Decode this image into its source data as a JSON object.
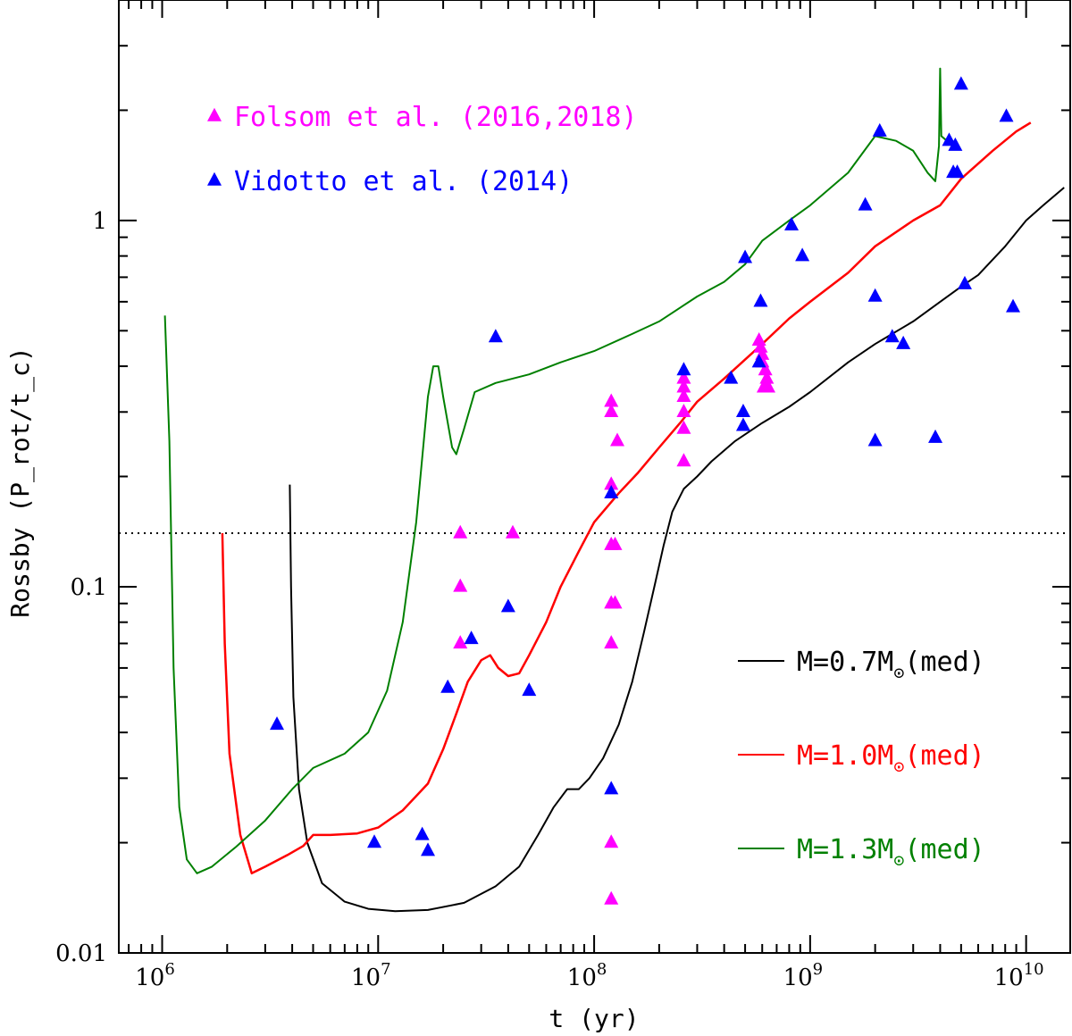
{
  "chart_data": {
    "type": "scatter",
    "xlabel": "t (yr)",
    "ylabel": "Rossby (P_rot/t_c)",
    "xscale": "log",
    "yscale": "log",
    "xlim": [
      630000,
      16000000000
    ],
    "ylim": [
      0.01,
      4.0
    ],
    "x_tick_labels": [
      {
        "value": 1000000,
        "base": "10",
        "exp": "6"
      },
      {
        "value": 10000000,
        "base": "10",
        "exp": "7"
      },
      {
        "value": 100000000,
        "base": "10",
        "exp": "8"
      },
      {
        "value": 1000000000,
        "base": "10",
        "exp": "9"
      },
      {
        "value": 10000000000,
        "base": "10",
        "exp": "10"
      }
    ],
    "y_tick_labels": [
      {
        "value": 0.01,
        "label": "0.01"
      },
      {
        "value": 0.1,
        "label": "0.1"
      },
      {
        "value": 1,
        "label": "1"
      }
    ],
    "threshold_line": {
      "y": 0.14,
      "style": "dotted",
      "color": "#000000"
    },
    "scatter_series": [
      {
        "name": "Folsom et al. (2016,2018)",
        "color": "#ff00ff",
        "marker": "triangle",
        "points": [
          [
            24000000,
            0.14
          ],
          [
            24000000,
            0.1
          ],
          [
            24000000,
            0.07
          ],
          [
            42000000,
            0.14
          ],
          [
            120000000,
            0.32
          ],
          [
            120000000,
            0.3
          ],
          [
            120000000,
            0.19
          ],
          [
            120000000,
            0.13
          ],
          [
            125000000,
            0.13
          ],
          [
            120000000,
            0.09
          ],
          [
            125000000,
            0.09
          ],
          [
            120000000,
            0.07
          ],
          [
            120000000,
            0.02
          ],
          [
            120000000,
            0.014
          ],
          [
            128000000,
            0.25
          ],
          [
            260000000,
            0.37
          ],
          [
            260000000,
            0.35
          ],
          [
            260000000,
            0.33
          ],
          [
            260000000,
            0.3
          ],
          [
            260000000,
            0.27
          ],
          [
            260000000,
            0.22
          ],
          [
            580000000,
            0.47
          ],
          [
            590000000,
            0.45
          ],
          [
            600000000,
            0.43
          ],
          [
            600000000,
            0.41
          ],
          [
            620000000,
            0.39
          ],
          [
            630000000,
            0.37
          ],
          [
            610000000,
            0.35
          ],
          [
            640000000,
            0.35
          ]
        ]
      },
      {
        "name": "Vidotto et al. (2014)",
        "color": "#0000ff",
        "marker": "triangle",
        "points": [
          [
            3400000,
            0.042
          ],
          [
            9600000,
            0.02
          ],
          [
            16000000,
            0.021
          ],
          [
            17000000,
            0.019
          ],
          [
            21000000,
            0.053
          ],
          [
            27000000,
            0.072
          ],
          [
            35000000,
            0.48
          ],
          [
            40000000,
            0.088
          ],
          [
            50000000,
            0.052
          ],
          [
            120000000,
            0.18
          ],
          [
            120000000,
            0.028
          ],
          [
            260000000,
            0.39
          ],
          [
            430000000,
            0.37
          ],
          [
            490000000,
            0.3
          ],
          [
            490000000,
            0.275
          ],
          [
            500000000,
            0.79
          ],
          [
            580000000,
            0.41
          ],
          [
            590000000,
            0.6
          ],
          [
            820000000,
            0.97
          ],
          [
            920000000,
            0.8
          ],
          [
            1800000000,
            1.1
          ],
          [
            2000000000,
            0.25
          ],
          [
            2000000000,
            0.62
          ],
          [
            2100000000,
            1.75
          ],
          [
            2400000000,
            0.48
          ],
          [
            2700000000,
            0.46
          ],
          [
            3800000000,
            0.255
          ],
          [
            4400000000,
            1.65
          ],
          [
            4600000000,
            1.35
          ],
          [
            4700000000,
            1.6
          ],
          [
            4800000000,
            1.35
          ],
          [
            5000000000,
            2.35
          ],
          [
            5200000000,
            0.67
          ],
          [
            8100000000,
            1.92
          ],
          [
            8700000000,
            0.58
          ]
        ]
      }
    ],
    "model_series": [
      {
        "name": "M=0.7M⊙(med)",
        "label_main": "M=0.7M",
        "label_sub": "⊙",
        "label_tail": "(med)",
        "color": "#000000",
        "points": [
          [
            3900000,
            0.19
          ],
          [
            3950000,
            0.1
          ],
          [
            4050000,
            0.05
          ],
          [
            4300000,
            0.028
          ],
          [
            4700000,
            0.02
          ],
          [
            5500000,
            0.0155
          ],
          [
            7000000,
            0.0138
          ],
          [
            9000000,
            0.0132
          ],
          [
            12000000,
            0.013
          ],
          [
            17000000,
            0.0131
          ],
          [
            25000000,
            0.0137
          ],
          [
            35000000,
            0.0152
          ],
          [
            45000000,
            0.0172
          ],
          [
            55000000,
            0.021
          ],
          [
            65000000,
            0.025
          ],
          [
            75000000,
            0.028
          ],
          [
            85000000,
            0.028
          ],
          [
            95000000,
            0.03
          ],
          [
            110000000,
            0.034
          ],
          [
            130000000,
            0.042
          ],
          [
            150000000,
            0.055
          ],
          [
            170000000,
            0.075
          ],
          [
            190000000,
            0.1
          ],
          [
            210000000,
            0.13
          ],
          [
            230000000,
            0.16
          ],
          [
            260000000,
            0.185
          ],
          [
            300000000,
            0.2
          ],
          [
            350000000,
            0.22
          ],
          [
            450000000,
            0.25
          ],
          [
            600000000,
            0.28
          ],
          [
            800000000,
            0.31
          ],
          [
            1000000000,
            0.34
          ],
          [
            1500000000,
            0.41
          ],
          [
            2000000000,
            0.46
          ],
          [
            3000000000,
            0.53
          ],
          [
            4000000000,
            0.6
          ],
          [
            5000000000,
            0.66
          ],
          [
            6000000000,
            0.71
          ],
          [
            8000000000,
            0.85
          ],
          [
            10000000000,
            1.0
          ],
          [
            12000000000,
            1.1
          ],
          [
            15000000000,
            1.23
          ]
        ]
      },
      {
        "name": "M=1.0M⊙(med)",
        "label_main": "M=1.0M",
        "label_sub": "⊙",
        "label_tail": "(med)",
        "color": "#ff0000",
        "points": [
          [
            1900000,
            0.14
          ],
          [
            1950000,
            0.07
          ],
          [
            2050000,
            0.035
          ],
          [
            2300000,
            0.021
          ],
          [
            2600000,
            0.0165
          ],
          [
            3000000,
            0.0172
          ],
          [
            3800000,
            0.0185
          ],
          [
            4500000,
            0.0196
          ],
          [
            5000000,
            0.021
          ],
          [
            6000000,
            0.021
          ],
          [
            8000000,
            0.0212
          ],
          [
            10000000,
            0.022
          ],
          [
            13000000,
            0.0245
          ],
          [
            17000000,
            0.029
          ],
          [
            20000000,
            0.036
          ],
          [
            23000000,
            0.045
          ],
          [
            26000000,
            0.055
          ],
          [
            30000000,
            0.063
          ],
          [
            33000000,
            0.065
          ],
          [
            36000000,
            0.06
          ],
          [
            40000000,
            0.057
          ],
          [
            45000000,
            0.058
          ],
          [
            50000000,
            0.065
          ],
          [
            60000000,
            0.08
          ],
          [
            70000000,
            0.1
          ],
          [
            85000000,
            0.125
          ],
          [
            100000000,
            0.15
          ],
          [
            130000000,
            0.18
          ],
          [
            160000000,
            0.205
          ],
          [
            200000000,
            0.24
          ],
          [
            250000000,
            0.28
          ],
          [
            300000000,
            0.32
          ],
          [
            400000000,
            0.37
          ],
          [
            600000000,
            0.46
          ],
          [
            800000000,
            0.54
          ],
          [
            1000000000,
            0.6
          ],
          [
            1500000000,
            0.72
          ],
          [
            2000000000,
            0.85
          ],
          [
            3000000000,
            1.0
          ],
          [
            4000000000,
            1.1
          ],
          [
            5000000000,
            1.3
          ],
          [
            7000000000,
            1.55
          ],
          [
            9000000000,
            1.75
          ],
          [
            10500000000,
            1.85
          ]
        ]
      },
      {
        "name": "M=1.3M⊙(med)",
        "label_main": "M=1.3M",
        "label_sub": "⊙",
        "label_tail": "(med)",
        "color": "#008000",
        "points": [
          [
            1030000,
            0.55
          ],
          [
            1080000,
            0.25
          ],
          [
            1130000,
            0.06
          ],
          [
            1200000,
            0.025
          ],
          [
            1300000,
            0.018
          ],
          [
            1450000,
            0.0165
          ],
          [
            1700000,
            0.0172
          ],
          [
            2200000,
            0.0195
          ],
          [
            3000000,
            0.023
          ],
          [
            4000000,
            0.028
          ],
          [
            5000000,
            0.032
          ],
          [
            7000000,
            0.035
          ],
          [
            9000000,
            0.04
          ],
          [
            11000000,
            0.052
          ],
          [
            13000000,
            0.08
          ],
          [
            15000000,
            0.15
          ],
          [
            17000000,
            0.33
          ],
          [
            18000000,
            0.4
          ],
          [
            19000000,
            0.4
          ],
          [
            20000000,
            0.33
          ],
          [
            22000000,
            0.24
          ],
          [
            23000000,
            0.23
          ],
          [
            25000000,
            0.27
          ],
          [
            28000000,
            0.34
          ],
          [
            35000000,
            0.36
          ],
          [
            50000000,
            0.38
          ],
          [
            70000000,
            0.41
          ],
          [
            100000000,
            0.44
          ],
          [
            150000000,
            0.49
          ],
          [
            200000000,
            0.53
          ],
          [
            300000000,
            0.62
          ],
          [
            400000000,
            0.68
          ],
          [
            500000000,
            0.76
          ],
          [
            600000000,
            0.88
          ],
          [
            800000000,
            1.0
          ],
          [
            1000000000,
            1.1
          ],
          [
            1500000000,
            1.35
          ],
          [
            2000000000,
            1.7
          ],
          [
            2500000000,
            1.65
          ],
          [
            3000000000,
            1.55
          ],
          [
            3500000000,
            1.35
          ],
          [
            3800000000,
            1.28
          ],
          [
            3950000000,
            1.6
          ],
          [
            4000000000,
            2.6
          ],
          [
            4050000000,
            1.7
          ],
          [
            4300000000,
            1.65
          ]
        ]
      }
    ]
  }
}
